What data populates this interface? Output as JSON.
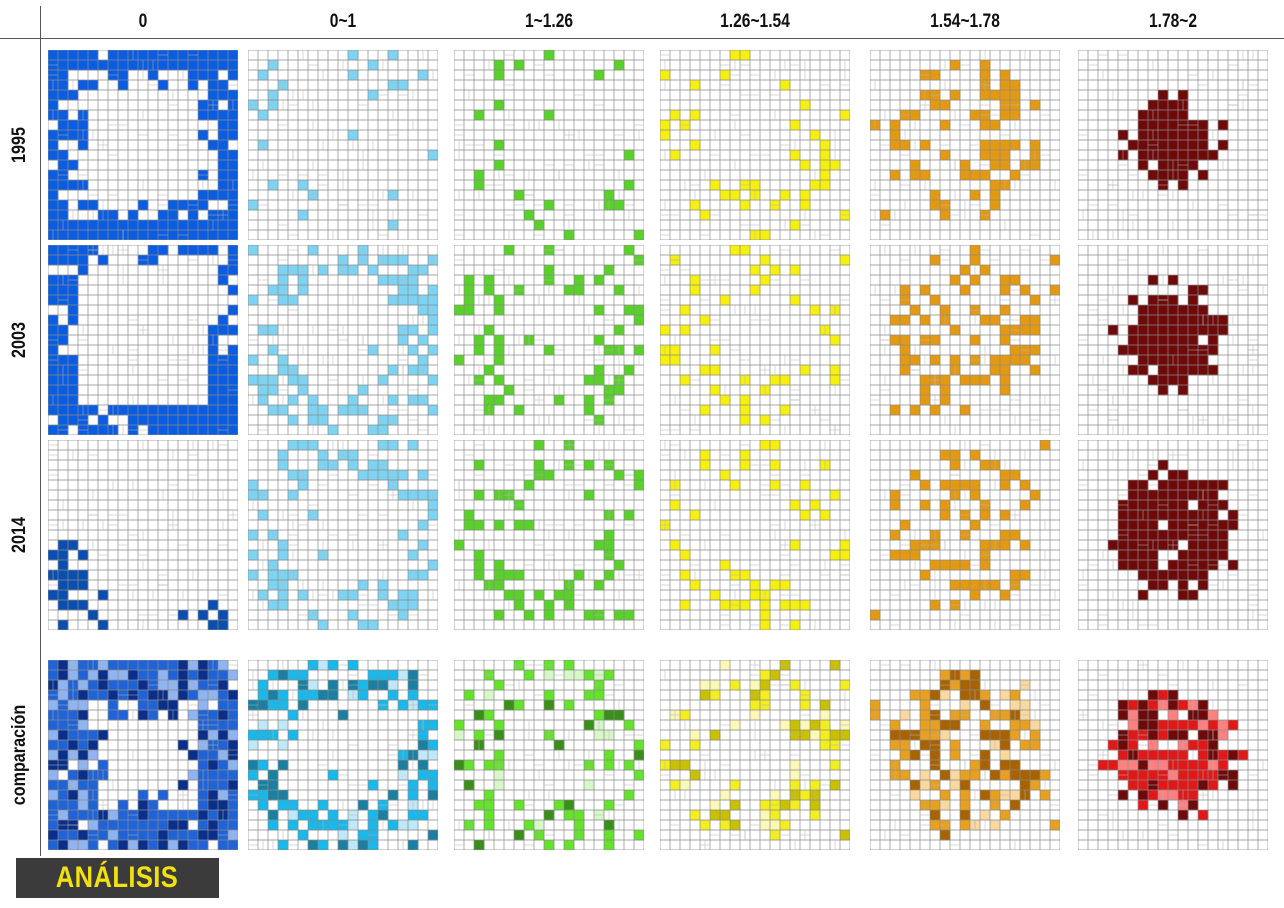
{
  "columns": [
    "0",
    "0~1",
    "1~1.26",
    "1.26~1.54",
    "1.54~1.78",
    "1.78~2"
  ],
  "rows": [
    "1995",
    "2003",
    "2014",
    "comparación"
  ],
  "footer_label": "ANÁLISIS",
  "grid_size": 19,
  "colors": {
    "1995": [
      "#0a5ce0",
      "#7fd3f2",
      "#5ad12a",
      "#f5f010",
      "#e39a12",
      "#6e0a0a"
    ],
    "2003": [
      "#0a5ce0",
      "#7fd3f2",
      "#5ad12a",
      "#f5f010",
      "#e39a12",
      "#6e0a0a"
    ],
    "2014": [
      "#0a4fb0",
      "#7fd3f2",
      "#5ad12a",
      "#f5f010",
      "#e39a12",
      "#6e0a0a"
    ],
    "comparación": [
      [
        "#0a2f8a",
        "#1f63d6",
        "#8fb4f0"
      ],
      [
        "#1a7fa0",
        "#18b8ea",
        "#bfe8f8"
      ],
      [
        "#3a8f1a",
        "#64e22c",
        "#d8f7c8"
      ],
      [
        "#c8c000",
        "#f2ee20",
        "#fbf8b8"
      ],
      [
        "#a86200",
        "#e7a020",
        "#f9d9a0"
      ],
      [
        "#6e0a0a",
        "#e01818",
        "#ff8080"
      ]
    ]
  }
}
